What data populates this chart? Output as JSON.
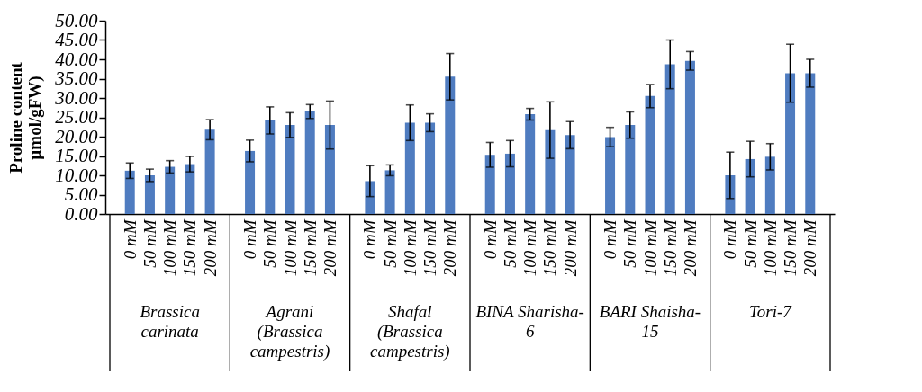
{
  "chart_data": {
    "type": "bar",
    "ylabel": "Proline content µmol/gFW)",
    "categories": [
      "0 mM",
      "50 mM",
      "100 mM",
      "150 mM",
      "200 mM",
      "0 mM",
      "50 mM",
      "100 mM",
      "150 mM",
      "200 mM",
      "0 mM",
      "50 mM",
      "100 mM",
      "150 mM",
      "200 mM",
      "0 mM",
      "50 mM",
      "100 mM",
      "150 mM",
      "200 mM",
      "0 mM",
      "50 mM",
      "100 mM",
      "150 mM",
      "200 mM",
      "0 mM",
      "50 mM",
      "100 mM",
      "150 mM",
      "200 mM"
    ],
    "values": [
      11.2,
      10,
      12.2,
      12.9,
      21.8,
      16.3,
      24.2,
      23,
      26.5,
      23,
      8.5,
      11.3,
      23.6,
      23.6,
      35.5,
      15.3,
      15.6,
      25.8,
      21.7,
      20.4,
      19.9,
      23,
      30.5,
      38.7,
      39.6,
      10,
      14.2,
      14.8,
      36.4,
      36.4
    ],
    "errors": [
      2,
      1.6,
      1.6,
      2,
      2.6,
      2.8,
      3.5,
      3.2,
      1.8,
      6.2,
      4,
      1.4,
      4.6,
      2.3,
      6,
      3.2,
      3.4,
      1.5,
      7.3,
      3.5,
      2.5,
      3.4,
      3,
      6.3,
      2.4,
      6,
      4.6,
      3.4,
      7.5,
      3.6
    ],
    "color": "#4f7cc0",
    "annotations": [
      "Brassica carinata",
      "Agrani (Brassica campestris)",
      "Shafal (Brassica campestris)",
      "BINA Sharisha-6",
      "BARI Shaisha-15",
      "Tori-7"
    ],
    "ylim": [
      0,
      50
    ],
    "yticks": [
      {
        "value": 0,
        "label": "0.00"
      },
      {
        "value": 5,
        "label": "5.00"
      },
      {
        "value": 10,
        "label": "10.00"
      },
      {
        "value": 15,
        "label": "15.00"
      },
      {
        "value": 20,
        "label": "20.00"
      },
      {
        "value": 25,
        "label": "25.00"
      },
      {
        "value": 30,
        "label": "30.00"
      },
      {
        "value": 35,
        "label": "35.00"
      },
      {
        "value": 40,
        "label": "40.00"
      },
      {
        "value": 45,
        "label": "45.00"
      },
      {
        "value": 50,
        "label": "50.00"
      }
    ],
    "grid": false
  }
}
